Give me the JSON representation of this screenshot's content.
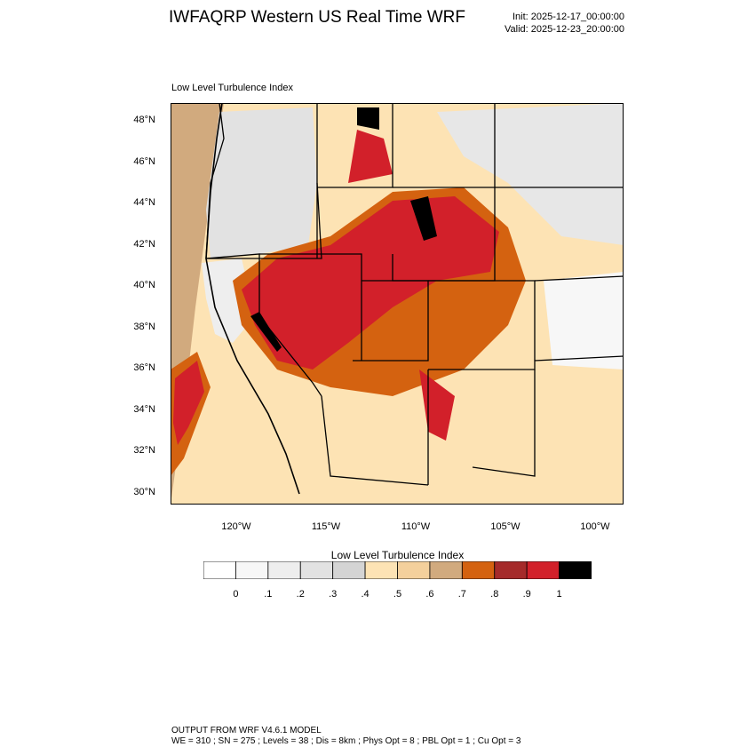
{
  "header": {
    "title": "IWFAQRP Western US Real Time WRF",
    "init": "Init: 2025-12-17_00:00:00",
    "valid": "Valid: 2025-12-23_20:00:00"
  },
  "map": {
    "field_label": "Low Level Turbulence Index",
    "lat_labels": [
      "48°N",
      "46°N",
      "44°N",
      "42°N",
      "40°N",
      "38°N",
      "36°N",
      "34°N",
      "32°N",
      "30°N"
    ],
    "lon_labels": [
      "120°W",
      "115°W",
      "110°W",
      "105°W",
      "100°W"
    ]
  },
  "colorbar": {
    "title": "Low Level Turbulence Index",
    "colors": [
      "#ffffff",
      "#f7f7f7",
      "#eeeeee",
      "#e2e2e2",
      "#d4d4d4",
      "#fde3b4",
      "#f4d09c",
      "#d1aa7e",
      "#d46210",
      "#a52a2a",
      "#d2202a",
      "#000000"
    ],
    "tick_labels": [
      "0",
      ".1",
      ".2",
      ".3",
      ".4",
      ".5",
      ".6",
      ".7",
      ".8",
      ".9",
      "1"
    ]
  },
  "footer": {
    "line1": "OUTPUT FROM WRF V4.6.1 MODEL",
    "line2": "WE = 310 ; SN = 275 ; Levels = 38 ; Dis = 8km ; Phys Opt = 8 ; PBL Opt = 1 ; Cu Opt = 3"
  }
}
